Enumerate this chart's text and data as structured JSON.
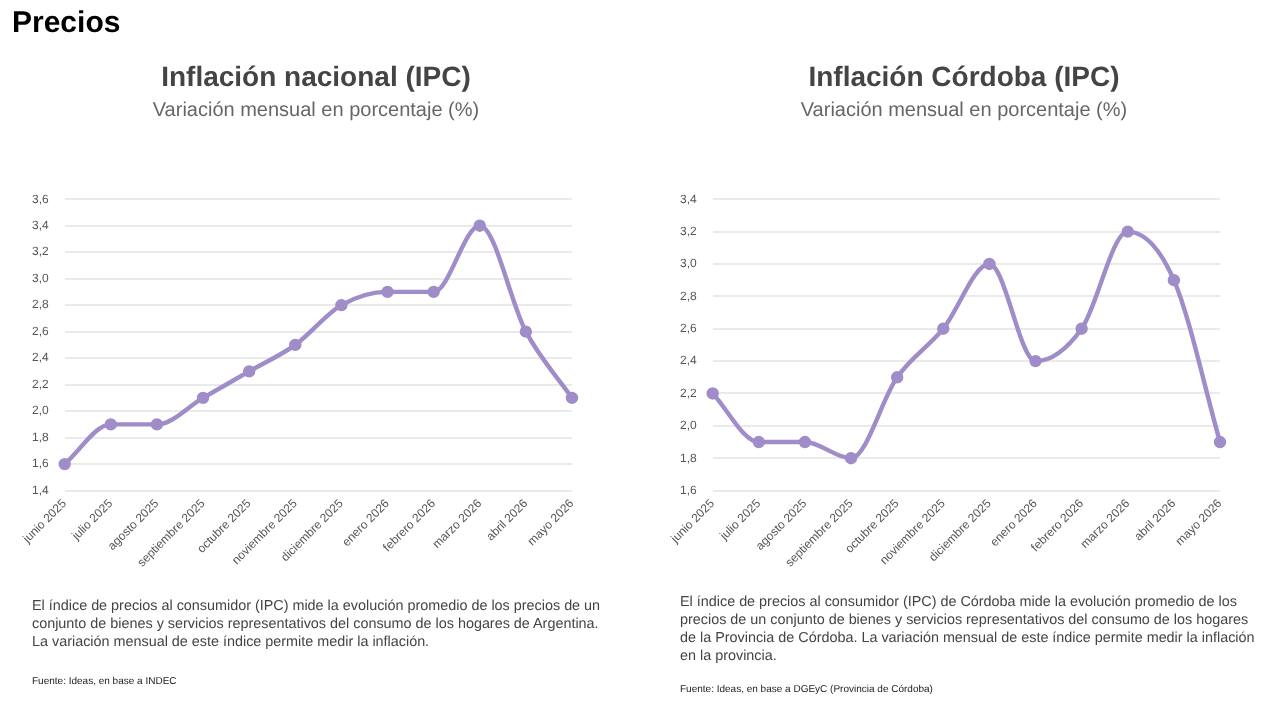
{
  "chart_data": [
    {
      "type": "line",
      "title": "Inflación nacional (IPC)",
      "subtitle": "Variación mensual en porcentaje (%)",
      "categories": [
        "junio 2025",
        "julio 2025",
        "agosto 2025",
        "septiembre 2025",
        "octubre 2025",
        "noviembre 2025",
        "diciembre 2025",
        "enero 2026",
        "febrero 2026",
        "marzo 2026",
        "abril 2026",
        "mayo 2026"
      ],
      "series": [
        {
          "color": "#a08cc8",
          "values": [
            1.6,
            1.9,
            1.9,
            2.1,
            2.3,
            2.5,
            2.8,
            2.9,
            2.9,
            3.4,
            2.6,
            2.1
          ]
        }
      ],
      "ylim": [
        1.4,
        3.6
      ],
      "yticks": [
        {
          "value": 1.4,
          "label": "1,4"
        },
        {
          "value": 1.6,
          "label": "1,6"
        },
        {
          "value": 1.8,
          "label": "1,8"
        },
        {
          "value": 2.0,
          "label": "2,0"
        },
        {
          "value": 2.2,
          "label": "2,2"
        },
        {
          "value": 2.4,
          "label": "2,4"
        },
        {
          "value": 2.6,
          "label": "2,6"
        },
        {
          "value": 2.8,
          "label": "2,8"
        },
        {
          "value": 3.0,
          "label": "3,0"
        },
        {
          "value": 3.2,
          "label": "3,2"
        },
        {
          "value": 3.4,
          "label": "3,4"
        },
        {
          "value": 3.6,
          "label": "3,6"
        }
      ],
      "grid": "y",
      "legend": false,
      "marker": "circle",
      "line_style": "solid",
      "annotations": [
        "Precios",
        "El índice de precios al consumidor (IPC) mide la evolución promedio de los precios de un conjunto de bienes y servicios representativos del consumo de los hogares de Argentina. La variación mensual de este índice permite medir la inflación.",
        "Fuente: Ideas, en base a INDEC"
      ]
    },
    {
      "type": "line",
      "title": "Inflación Córdoba (IPC)",
      "subtitle": "Variación mensual en porcentaje (%)",
      "categories": [
        "junio 2025",
        "julio 2025",
        "agosto 2025",
        "septiembre 2025",
        "octubre 2025",
        "noviembre 2025",
        "diciembre 2025",
        "enero 2026",
        "febrero 2026",
        "marzo 2026",
        "abril 2026",
        "mayo 2026"
      ],
      "series": [
        {
          "color": "#a08cc8",
          "values": [
            2.2,
            1.9,
            1.9,
            1.8,
            2.3,
            2.6,
            3.0,
            2.4,
            2.6,
            3.2,
            2.9,
            1.9
          ]
        }
      ],
      "ylim": [
        1.6,
        3.4
      ],
      "yticks": [
        {
          "value": 1.6,
          "label": "1,6"
        },
        {
          "value": 1.8,
          "label": "1,8"
        },
        {
          "value": 2.0,
          "label": "2,0"
        },
        {
          "value": 2.2,
          "label": "2,2"
        },
        {
          "value": 2.4,
          "label": "2,4"
        },
        {
          "value": 2.6,
          "label": "2,6"
        },
        {
          "value": 2.8,
          "label": "2,8"
        },
        {
          "value": 3.0,
          "label": "3,0"
        },
        {
          "value": 3.2,
          "label": "3,2"
        },
        {
          "value": 3.4,
          "label": "3,4"
        }
      ],
      "grid": "y",
      "legend": false,
      "marker": "circle",
      "line_style": "solid",
      "annotations": [
        "El índice de precios al consumidor (IPC) de Córdoba mide la evolución promedio de los precios de un conjunto de bienes y servicios representativos del consumo de los hogares de la Provincia de Córdoba. La variación mensual de este índice permite medir la inflación en la provincia.",
        "Fuente: Ideas, en base a DGEyC (Provincia de Córdoba)"
      ]
    }
  ]
}
